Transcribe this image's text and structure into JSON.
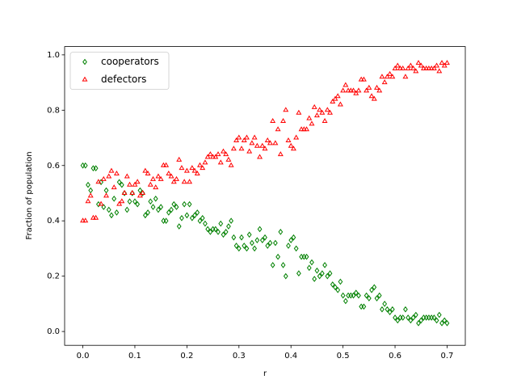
{
  "chart_data": {
    "type": "scatter",
    "xlabel": "r",
    "ylabel": "Fraction of population",
    "xlim": [
      -0.035,
      0.735
    ],
    "ylim": [
      -0.05,
      1.03
    ],
    "xticks": [
      {
        "value": 0,
        "label": "0.0"
      },
      0.1,
      0.2,
      0.3,
      0.4,
      0.5,
      0.6,
      0.7
    ],
    "yticks": [
      {
        "value": 0,
        "label": "0.0"
      },
      0.2,
      0.4,
      0.6,
      0.8,
      {
        "value": 1,
        "label": "1.0"
      }
    ],
    "legend": "upper left",
    "x": [
      0,
      0.005,
      0.01,
      0.015,
      0.02,
      0.025,
      0.03,
      0.035,
      0.04,
      0.045,
      0.05,
      0.055,
      0.06,
      0.065,
      0.07,
      0.075,
      0.08,
      0.085,
      0.09,
      0.095,
      0.1,
      0.105,
      0.11,
      0.115,
      0.12,
      0.125,
      0.13,
      0.135,
      0.14,
      0.145,
      0.15,
      0.155,
      0.16,
      0.165,
      0.17,
      0.175,
      0.18,
      0.185,
      0.19,
      0.195,
      0.2,
      0.205,
      0.21,
      0.215,
      0.22,
      0.225,
      0.23,
      0.235,
      0.24,
      0.245,
      0.25,
      0.255,
      0.26,
      0.265,
      0.27,
      0.275,
      0.28,
      0.285,
      0.29,
      0.295,
      0.3,
      0.305,
      0.31,
      0.315,
      0.32,
      0.325,
      0.33,
      0.335,
      0.34,
      0.345,
      0.35,
      0.355,
      0.36,
      0.365,
      0.37,
      0.375,
      0.38,
      0.385,
      0.39,
      0.395,
      0.4,
      0.405,
      0.41,
      0.415,
      0.42,
      0.425,
      0.43,
      0.435,
      0.44,
      0.445,
      0.45,
      0.455,
      0.46,
      0.465,
      0.47,
      0.475,
      0.48,
      0.485,
      0.49,
      0.495,
      0.5,
      0.505,
      0.51,
      0.515,
      0.52,
      0.525,
      0.53,
      0.535,
      0.54,
      0.545,
      0.55,
      0.555,
      0.56,
      0.565,
      0.57,
      0.575,
      0.58,
      0.585,
      0.59,
      0.595,
      0.6,
      0.605,
      0.61,
      0.615,
      0.62,
      0.625,
      0.63,
      0.635,
      0.64,
      0.645,
      0.65,
      0.655,
      0.66,
      0.665,
      0.67,
      0.675,
      0.68,
      0.685,
      0.69,
      0.695,
      0.7
    ],
    "series": [
      {
        "name": "cooperators",
        "color": "#008000",
        "marker": "diamond",
        "values": [
          0.6,
          0.6,
          0.53,
          0.51,
          0.59,
          0.59,
          0.46,
          0.54,
          0.45,
          0.51,
          0.44,
          0.42,
          0.48,
          0.43,
          0.54,
          0.53,
          0.5,
          0.44,
          0.47,
          0.5,
          0.47,
          0.46,
          0.51,
          0.5,
          0.42,
          0.43,
          0.47,
          0.45,
          0.48,
          0.44,
          0.45,
          0.4,
          0.4,
          0.43,
          0.44,
          0.46,
          0.45,
          0.38,
          0.41,
          0.46,
          0.42,
          0.46,
          0.41,
          0.42,
          0.43,
          0.4,
          0.41,
          0.39,
          0.37,
          0.36,
          0.37,
          0.37,
          0.36,
          0.39,
          0.35,
          0.36,
          0.38,
          0.4,
          0.34,
          0.31,
          0.3,
          0.34,
          0.31,
          0.3,
          0.35,
          0.32,
          0.3,
          0.33,
          0.37,
          0.33,
          0.34,
          0.31,
          0.32,
          0.24,
          0.32,
          0.27,
          0.36,
          0.24,
          0.2,
          0.31,
          0.33,
          0.34,
          0.3,
          0.21,
          0.27,
          0.27,
          0.27,
          0.23,
          0.25,
          0.19,
          0.22,
          0.2,
          0.21,
          0.24,
          0.2,
          0.21,
          0.17,
          0.16,
          0.15,
          0.18,
          0.13,
          0.11,
          0.13,
          0.13,
          0.13,
          0.14,
          0.13,
          0.09,
          0.09,
          0.13,
          0.12,
          0.15,
          0.16,
          0.12,
          0.13,
          0.08,
          0.1,
          0.08,
          0.07,
          0.08,
          0.05,
          0.04,
          0.05,
          0.05,
          0.08,
          0.05,
          0.04,
          0.05,
          0.06,
          0.03,
          0.04,
          0.05,
          0.05,
          0.05,
          0.05,
          0.05,
          0.04,
          0.06,
          0.03,
          0.04,
          0.03
        ]
      },
      {
        "name": "defectors",
        "color": "#ff0000",
        "marker": "triangle",
        "values": [
          0.4,
          0.4,
          0.47,
          0.49,
          0.41,
          0.41,
          0.54,
          0.46,
          0.55,
          0.49,
          0.56,
          0.58,
          0.52,
          0.57,
          0.46,
          0.47,
          0.5,
          0.56,
          0.53,
          0.5,
          0.53,
          0.54,
          0.49,
          0.5,
          0.58,
          0.57,
          0.53,
          0.55,
          0.52,
          0.56,
          0.55,
          0.6,
          0.6,
          0.57,
          0.56,
          0.54,
          0.55,
          0.62,
          0.59,
          0.54,
          0.58,
          0.54,
          0.59,
          0.58,
          0.57,
          0.6,
          0.59,
          0.61,
          0.63,
          0.64,
          0.63,
          0.63,
          0.64,
          0.61,
          0.65,
          0.64,
          0.62,
          0.6,
          0.66,
          0.69,
          0.7,
          0.66,
          0.69,
          0.7,
          0.65,
          0.68,
          0.7,
          0.67,
          0.63,
          0.67,
          0.66,
          0.69,
          0.68,
          0.76,
          0.68,
          0.73,
          0.64,
          0.76,
          0.8,
          0.69,
          0.67,
          0.66,
          0.7,
          0.79,
          0.73,
          0.73,
          0.73,
          0.77,
          0.75,
          0.81,
          0.78,
          0.8,
          0.79,
          0.76,
          0.8,
          0.79,
          0.83,
          0.84,
          0.85,
          0.82,
          0.87,
          0.89,
          0.87,
          0.87,
          0.87,
          0.86,
          0.87,
          0.91,
          0.91,
          0.87,
          0.88,
          0.85,
          0.84,
          0.88,
          0.87,
          0.92,
          0.9,
          0.92,
          0.93,
          0.92,
          0.95,
          0.96,
          0.95,
          0.95,
          0.92,
          0.95,
          0.96,
          0.95,
          0.94,
          0.97,
          0.96,
          0.95,
          0.95,
          0.95,
          0.95,
          0.95,
          0.96,
          0.94,
          0.97,
          0.96,
          0.97
        ]
      }
    ]
  }
}
